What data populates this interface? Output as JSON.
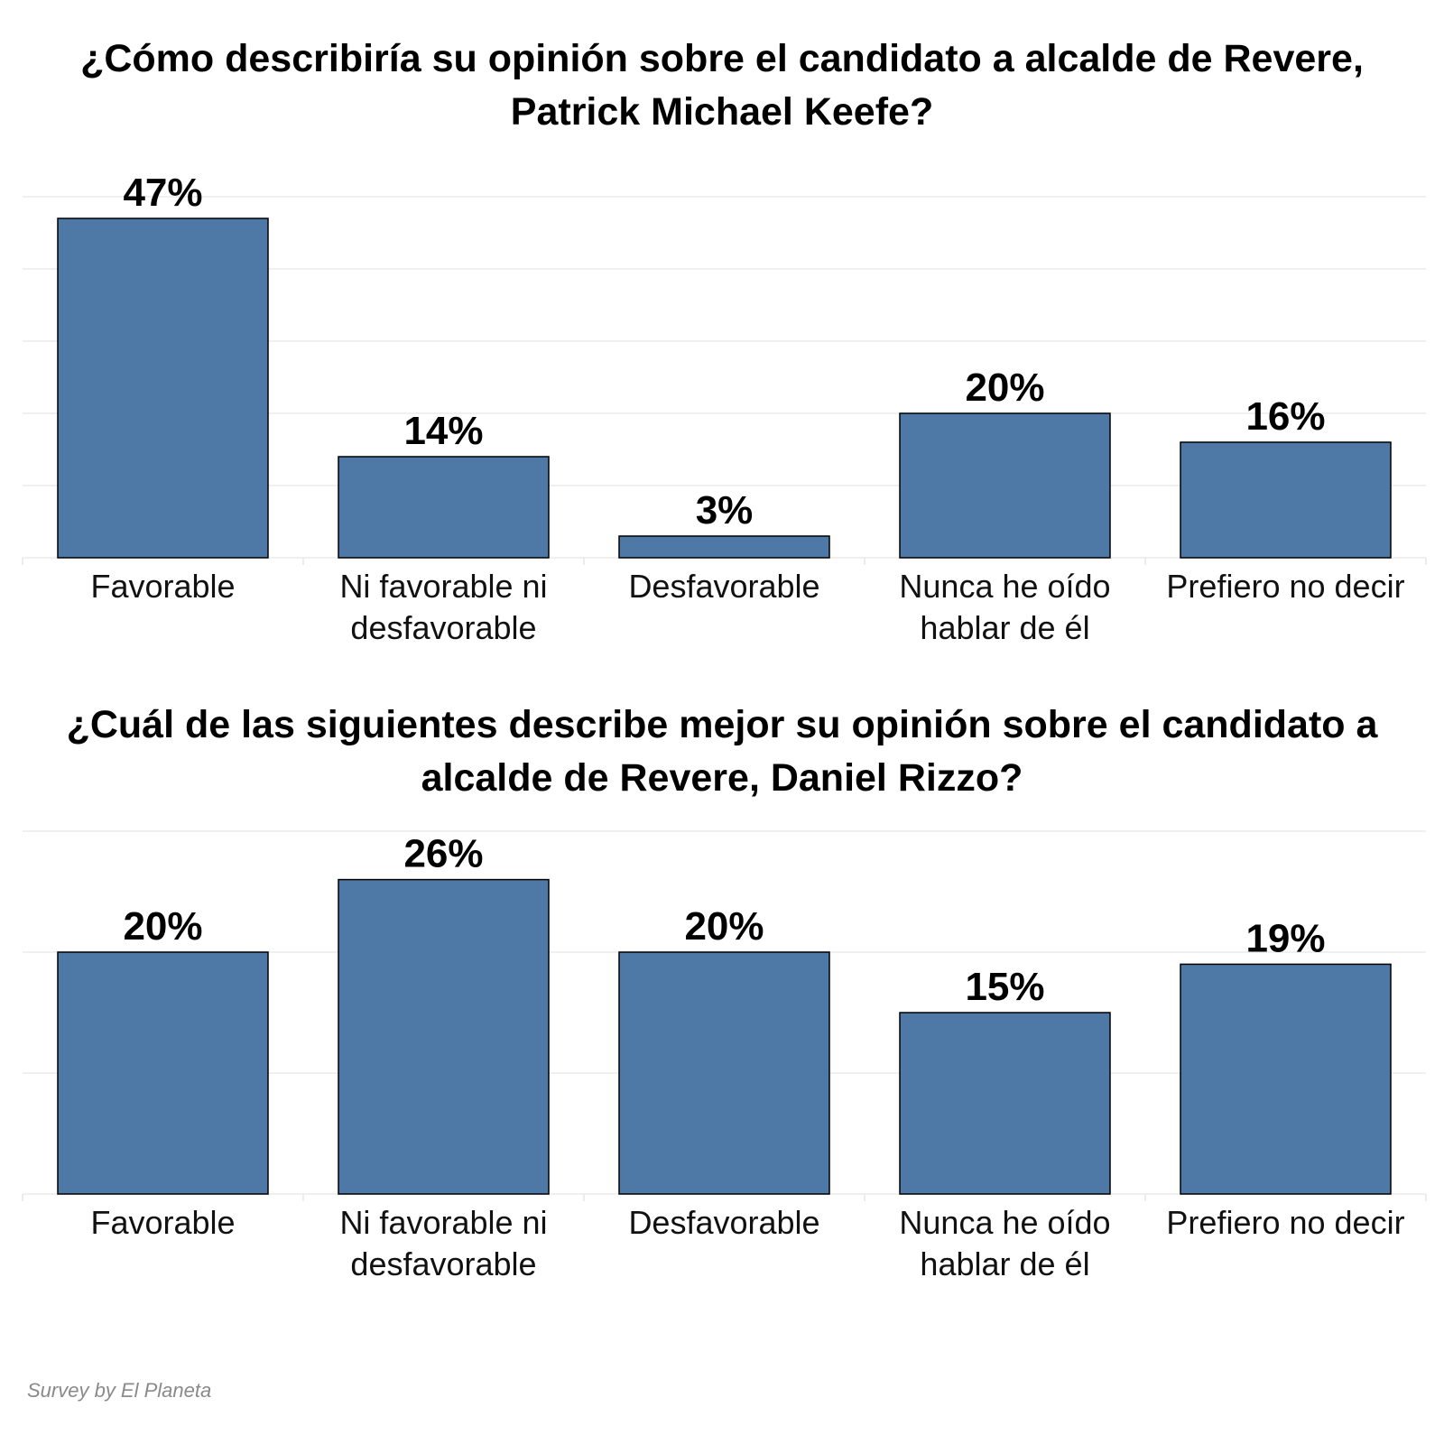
{
  "chart_data": [
    {
      "type": "bar",
      "title": "¿Cómo describiría su opinión sobre el candidato a alcalde de Revere, Patrick Michael Keefe?",
      "categories": [
        [
          "Favorable"
        ],
        [
          "Ni favorable ni",
          "desfavorable"
        ],
        [
          "Desfavorable"
        ],
        [
          "Nunca he oído",
          "hablar de él"
        ],
        [
          "Prefiero no decir"
        ]
      ],
      "values": [
        47,
        14,
        3,
        20,
        16
      ],
      "value_labels": [
        "47%",
        "14%",
        "3%",
        "20%",
        "16%"
      ],
      "ylim": [
        0,
        50
      ],
      "gridlines": [
        0,
        10,
        20,
        30,
        40,
        50
      ],
      "xlabel": "",
      "ylabel": ""
    },
    {
      "type": "bar",
      "title": "¿Cuál de las siguientes describe mejor su opinión sobre el candidato a alcalde de Revere, Daniel Rizzo?",
      "categories": [
        [
          "Favorable"
        ],
        [
          "Ni favorable ni",
          "desfavorable"
        ],
        [
          "Desfavorable"
        ],
        [
          "Nunca he oído",
          "hablar de él"
        ],
        [
          "Prefiero no decir"
        ]
      ],
      "values": [
        20,
        26,
        20,
        15,
        19
      ],
      "value_labels": [
        "20%",
        "26%",
        "20%",
        "15%",
        "19%"
      ],
      "ylim": [
        0,
        30
      ],
      "gridlines": [
        0,
        10,
        20,
        30
      ],
      "xlabel": "",
      "ylabel": ""
    }
  ],
  "colors": {
    "bar_fill": "#4e79a7",
    "bar_edge": "#000000",
    "grid": "#ececec"
  },
  "footer": "Survey by El Planeta"
}
